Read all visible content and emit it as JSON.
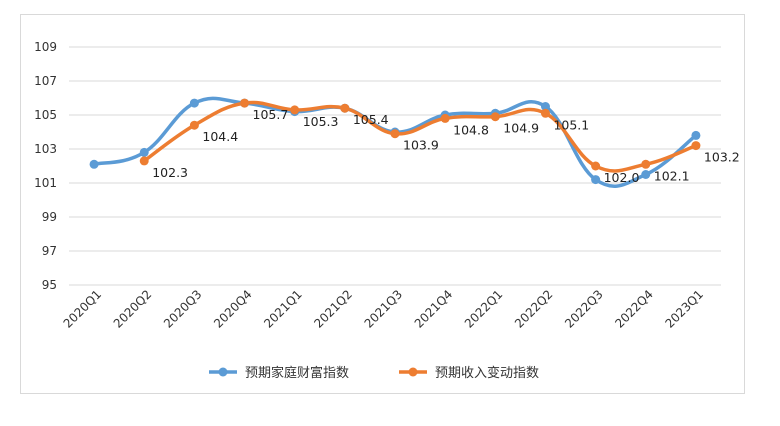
{
  "chart_data": {
    "type": "line",
    "categories": [
      "2020Q1",
      "2020Q2",
      "2020Q3",
      "2020Q4",
      "2021Q1",
      "2021Q2",
      "2021Q3",
      "2021Q4",
      "2022Q1",
      "2022Q2",
      "2022Q3",
      "2022Q4",
      "2023Q1"
    ],
    "ylim": [
      95,
      109
    ],
    "yticks": [
      95,
      97,
      99,
      101,
      103,
      105,
      107,
      109
    ],
    "grid": "horizontal",
    "smooth": true,
    "legend_position": "bottom",
    "series": [
      {
        "name": "预期家庭财富指数",
        "color": "#5b9bd5",
        "values": [
          102.1,
          102.8,
          105.7,
          105.7,
          105.2,
          105.4,
          104.0,
          105.0,
          105.1,
          105.5,
          101.2,
          101.5,
          103.8
        ],
        "labels": []
      },
      {
        "name": "预期收入变动指数",
        "color": "#ed7d31",
        "values": [
          null,
          102.3,
          104.4,
          105.7,
          105.3,
          105.4,
          103.9,
          104.8,
          104.9,
          105.1,
          102.0,
          102.1,
          103.2
        ],
        "labels": [
          "",
          "102.3",
          "104.4",
          "105.7",
          "105.3",
          "105.4",
          "103.9",
          "104.8",
          "104.9",
          "105.1",
          "102.0",
          "102.1",
          "103.2"
        ]
      }
    ]
  }
}
